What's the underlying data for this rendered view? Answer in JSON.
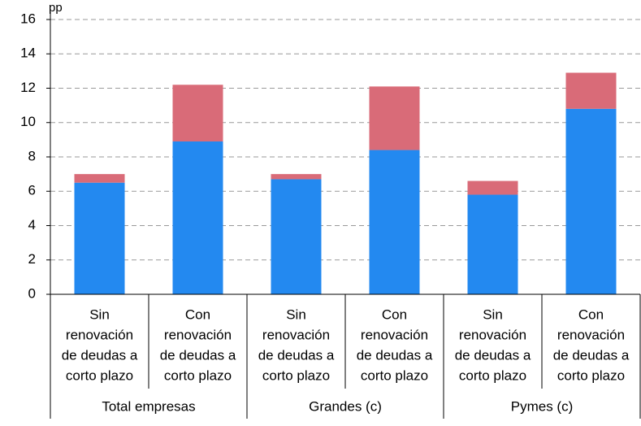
{
  "chart_data": {
    "type": "stacked_bar",
    "y_label": "pp",
    "categories": [
      [
        "Sin",
        "renovación",
        "de deudas a",
        "corto plazo"
      ],
      [
        "Con",
        "renovación",
        "de deudas a",
        "corto plazo"
      ],
      [
        "Sin",
        "renovación",
        "de deudas a",
        "corto plazo"
      ],
      [
        "Con",
        "renovación",
        "de deudas a",
        "corto plazo"
      ],
      [
        "Sin",
        "renovación",
        "de deudas a",
        "corto plazo"
      ],
      [
        "Con",
        "renovación",
        "de deudas a",
        "corto plazo"
      ]
    ],
    "groups": [
      "Total empresas",
      "Grandes (c)",
      "Pymes (c)"
    ],
    "series": [
      {
        "color": "#2389f0",
        "values": [
          6.5,
          8.9,
          6.7,
          8.4,
          5.8,
          10.8
        ]
      },
      {
        "color": "#d96b78",
        "values": [
          0.5,
          3.3,
          0.3,
          3.7,
          0.8,
          2.1
        ]
      }
    ],
    "ylim": [
      0,
      16
    ],
    "yticks": [
      0,
      2,
      4,
      6,
      8,
      10,
      12,
      14,
      16
    ],
    "grid": true
  }
}
